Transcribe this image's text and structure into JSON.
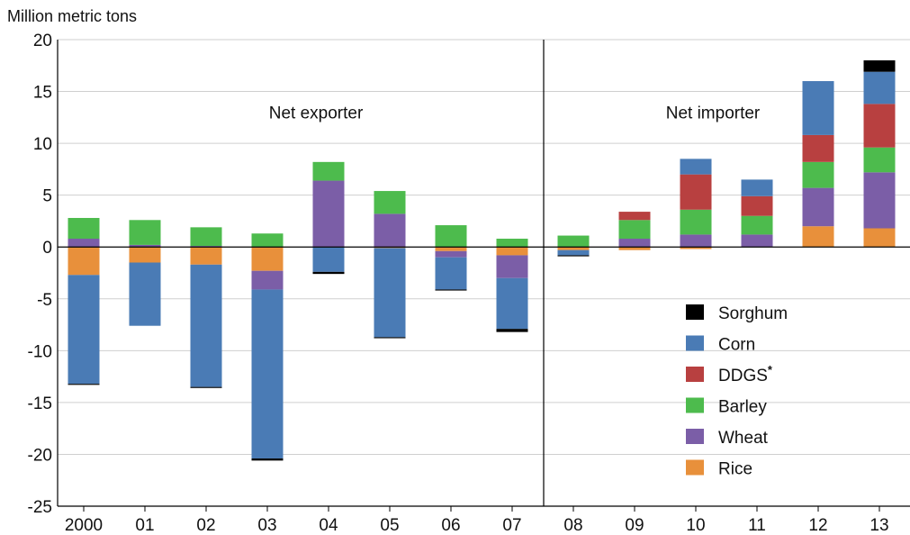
{
  "chart_data": {
    "type": "bar",
    "stacked": true,
    "unit_label": "Million metric tons",
    "categories": [
      "2000",
      "01",
      "02",
      "03",
      "04",
      "05",
      "06",
      "07",
      "08",
      "09",
      "10",
      "11",
      "12",
      "13"
    ],
    "ylim": [
      -25,
      20
    ],
    "yticks": [
      20,
      15,
      10,
      5,
      0,
      -5,
      -10,
      -15,
      -20,
      -25
    ],
    "grid": true,
    "regions": [
      {
        "label": "Net exporter",
        "categories": [
          "2000",
          "01",
          "02",
          "03",
          "04",
          "05",
          "06",
          "07"
        ]
      },
      {
        "label": "Net importer",
        "categories": [
          "08",
          "09",
          "10",
          "11",
          "12",
          "13"
        ]
      }
    ],
    "legend_position": "bottom-right",
    "series": [
      {
        "name": "Rice",
        "color": "#e8903b",
        "values": [
          -2.7,
          -1.5,
          -1.7,
          -2.3,
          0,
          -0.1,
          -0.4,
          -0.8,
          -0.3,
          -0.3,
          -0.2,
          0,
          2.0,
          1.8
        ]
      },
      {
        "name": "Wheat",
        "color": "#7b5ea7",
        "values": [
          0.8,
          0.2,
          0.1,
          -1.8,
          6.4,
          3.2,
          -0.6,
          -2.2,
          0,
          0.8,
          1.2,
          1.2,
          3.7,
          5.4
        ]
      },
      {
        "name": "Barley",
        "color": "#4dbb4d",
        "values": [
          2.0,
          2.4,
          1.8,
          1.3,
          1.8,
          2.2,
          2.1,
          0.8,
          1.1,
          1.8,
          2.4,
          1.8,
          2.5,
          2.4
        ]
      },
      {
        "name": "DDGS",
        "name_sup": "*",
        "color": "#b84040",
        "values": [
          0,
          0,
          0,
          0,
          0,
          0,
          0,
          0,
          0,
          0.8,
          3.4,
          1.9,
          2.6,
          4.2
        ]
      },
      {
        "name": "Corn",
        "color": "#4a7bb5",
        "values": [
          -10.5,
          -6.1,
          -11.8,
          -16.3,
          -2.4,
          -8.6,
          -3.1,
          -4.9,
          -0.5,
          0,
          1.5,
          1.6,
          5.2,
          3.1
        ]
      },
      {
        "name": "Sorghum",
        "color": "#000000",
        "values": [
          -0.1,
          0,
          -0.1,
          -0.2,
          -0.2,
          -0.1,
          -0.1,
          -0.3,
          -0.1,
          0,
          0,
          0,
          0,
          1.1
        ]
      }
    ],
    "legend_order": [
      "Sorghum",
      "Corn",
      "DDGS",
      "Barley",
      "Wheat",
      "Rice"
    ]
  }
}
